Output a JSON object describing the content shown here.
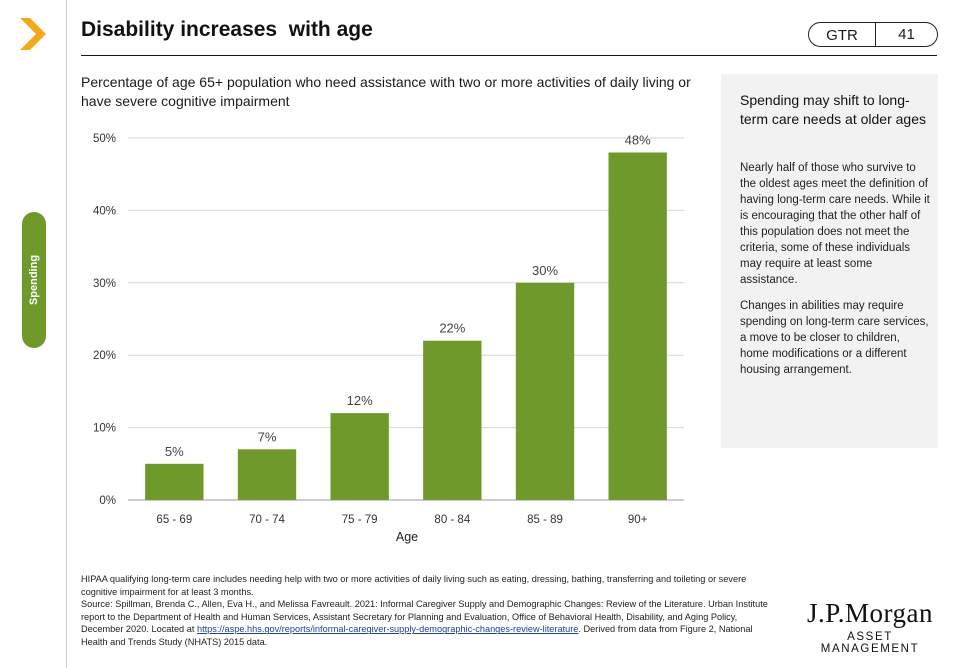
{
  "header": {
    "title": "Disability increases  with age",
    "badge_left": "GTR",
    "badge_right": "41"
  },
  "side_tab": {
    "label": "Spending"
  },
  "chart_data": {
    "type": "bar",
    "title": "Percentage of age 65+ population who need assistance with two or more activities of daily living or have severe cognitive impairment",
    "categories": [
      "65 - 69",
      "70 - 74",
      "75 - 79",
      "80 - 84",
      "85 - 89",
      "90+"
    ],
    "values": [
      5,
      7,
      12,
      22,
      30,
      48
    ],
    "data_labels": [
      "5%",
      "7%",
      "12%",
      "22%",
      "30%",
      "48%"
    ],
    "xlabel": "Age",
    "ylabel": "",
    "ylim": [
      0,
      50
    ],
    "yticks": [
      0,
      10,
      20,
      30,
      40,
      50
    ],
    "ytick_labels": [
      "0%",
      "10%",
      "20%",
      "30%",
      "40%",
      "50%"
    ],
    "grid": true,
    "bar_color": "#6f9a2b"
  },
  "panel": {
    "heading": "Spending may shift to long-term care needs at older ages",
    "paragraph1": "Nearly half of those who survive to the oldest ages meet the definition of having long-term care needs. While it is encouraging that the other half of this population does not meet the criteria, some of these individuals may require at least some assistance.",
    "paragraph2": "Changes in abilities may require spending on long-term care services, a move to be closer to children, home modifications  or a different housing arrangement."
  },
  "footnote": {
    "line1": "HIPAA qualifying long-term care includes needing help with two or more activities of daily living such as eating, dressing, bathing, transferring and toileting or severe cognitive impairment for at least 3 months.",
    "source_prefix": "Source: Spillman, Brenda C., Allen, Eva H., and Melissa Favreault. 2021: Informal Caregiver Supply and Demographic Changes: Review of the Literature. Urban Institute report to the Department of Health and Human Services, Assistant Secretary for Planning and Evaluation, Office of Behavioral Health, Disability, and Aging Policy, December 2020. Located at ",
    "link_text": "https://aspe.hhs.gov/reports/informal-caregiver-supply-demographic-changes-review-literature",
    "source_suffix": ". Derived from data from Figure 2, National Health and Trends Study (NHATS) 2015 data."
  },
  "logo": {
    "line1": "J.P.Morgan",
    "line2": "ASSET MANAGEMENT"
  },
  "colors": {
    "accent": "#6f9a2b",
    "chevron": "#f5a81c",
    "panel_bg": "#f2f2f2"
  }
}
